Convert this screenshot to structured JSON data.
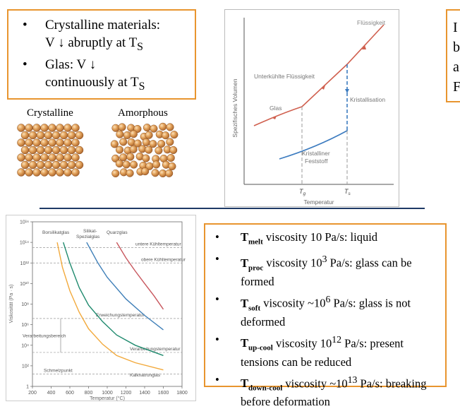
{
  "box_crystalline": {
    "items": [
      {
        "bullet": "•",
        "lines": [
          "Crystalline materials:",
          "V ↓ abruptly at T",
          "S"
        ]
      },
      {
        "bullet": "•",
        "lines": [
          "Glas: V ↓",
          "continuously at T",
          "S"
        ]
      }
    ]
  },
  "box_right_partial": {
    "lines": [
      "I",
      "b",
      "a",
      "F"
    ]
  },
  "structure_labels": {
    "crystalline": "Crystalline",
    "amorphous": "Amorphous"
  },
  "volume_chart": {
    "ylabel": "Spezifisches Volumen",
    "xlabel": "Temperatur",
    "labels": {
      "liquid": "Flüssigkeit",
      "supercooled": "Unterkühlte Flüssigkeit",
      "glass": "Glas",
      "crystallisation": "Kristallisation",
      "solid_line1": "Kristalliner",
      "solid_line2": "Feststoff",
      "tg": "T",
      "tg_sub": "g",
      "ts": "T",
      "ts_sub": "s"
    },
    "colors": {
      "red": "#d0604f",
      "blue": "#3d7cc0"
    }
  },
  "viscosity_chart": {
    "chart_data": {
      "type": "line",
      "xlabel": "Temperatur (°C)",
      "ylabel": "Viskosität (Pa · s)",
      "xlim": [
        200,
        1800
      ],
      "ylim_log10": [
        0,
        16
      ],
      "x_ticks": [
        "200",
        "400",
        "600",
        "800",
        "1000",
        "1200",
        "1400",
        "1600",
        "1800"
      ],
      "y_ticks": [
        "1",
        "10²",
        "10⁴",
        "10⁶",
        "10⁸",
        "10¹⁰",
        "10¹²",
        "10¹⁴",
        "10¹⁶"
      ],
      "series": [
        {
          "name": "Borsilikatglas",
          "color": "#f2a93b",
          "points": [
            [
              465,
              14
            ],
            [
              520,
              11.6
            ],
            [
              600,
              9.3
            ],
            [
              700,
              7.2
            ],
            [
              800,
              5.6
            ],
            [
              950,
              4.1
            ],
            [
              1100,
              3.0
            ],
            [
              1300,
              2.3
            ],
            [
              1600,
              1.6
            ]
          ]
        },
        {
          "name": "Silikat-Spezialglas",
          "color": "#1f8a6e",
          "points": [
            [
              530,
              14
            ],
            [
              600,
              12
            ],
            [
              700,
              9.6
            ],
            [
              800,
              7.9
            ],
            [
              950,
              6.3
            ],
            [
              1100,
              5.0
            ],
            [
              1300,
              4.0
            ],
            [
              1600,
              3.0
            ]
          ]
        },
        {
          "name": "Quarzglas",
          "color": "#3f7fb8",
          "points": [
            [
              780,
              14
            ],
            [
              900,
              12
            ],
            [
              1000,
              10.6
            ],
            [
              1200,
              8.5
            ],
            [
              1400,
              6.9
            ],
            [
              1600,
              5.5
            ]
          ]
        },
        {
          "name": "Kalknatronglas",
          "color": "#c8575e",
          "points": [
            [
              1100,
              14
            ],
            [
              1200,
              12.5
            ],
            [
              1300,
              11.2
            ],
            [
              1400,
              10
            ],
            [
              1500,
              8.8
            ],
            [
              1600,
              7.5
            ]
          ]
        }
      ],
      "reference_lines": [
        {
          "label": "untere Kühltemperatur",
          "log10": 13.5
        },
        {
          "label": "obere Kühltemperatur",
          "log10": 12
        },
        {
          "label": "Erweichungstemperatur",
          "log10": 6.6
        },
        {
          "label": "Verarbeitungstemperatur",
          "log10": 3.3
        },
        {
          "label": "Schmelzpunkt",
          "log10": 1.2
        }
      ],
      "annotations": [
        "Verarbeitungsbereich",
        "Borsilikatglas",
        "Silikat-Spezialglas",
        "Quarzglas",
        "Kalknatronglas"
      ]
    }
  },
  "box_viscosity": {
    "items": [
      {
        "bullet": "•",
        "t": "T",
        "sub": "melt",
        "text": " viscosity 10 Pa/s: liquid"
      },
      {
        "bullet": "•",
        "t": "T",
        "sub": "proc",
        "text": " viscosity 10",
        "sup": "3",
        "text2": " Pa/s: glass can be formed"
      },
      {
        "bullet": "•",
        "t": "T",
        "sub": "soft",
        "text": " viscosity ~10",
        "sup": "6",
        "text2": " Pa/s: glass is not deformed"
      },
      {
        "bullet": "•",
        "t": "T",
        "sub": "up-cool",
        "text": " viscosity 10",
        "sup": "12",
        "text2": " Pa/s: present tensions can be reduced"
      },
      {
        "bullet": "•",
        "t": "T",
        "sub": "down-cool",
        "text": " viscosity ~10",
        "sup": "13",
        "text2": " Pa/s: breaking before deformation"
      }
    ]
  }
}
